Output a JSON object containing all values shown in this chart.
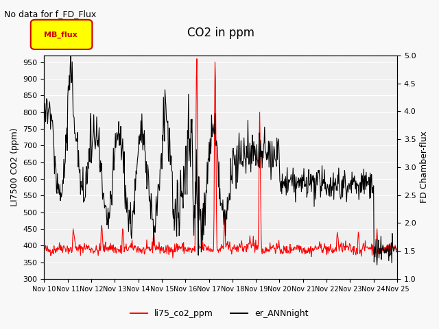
{
  "title": "CO2 in ppm",
  "subtitle": "No data for f_FD_Flux",
  "ylabel_left": "LI7500 CO2 (ppm)",
  "ylabel_right": "FD Chamber-flux",
  "ylim_left": [
    300,
    970
  ],
  "ylim_right": [
    1.0,
    5.0
  ],
  "yticks_left": [
    300,
    350,
    400,
    450,
    500,
    550,
    600,
    650,
    700,
    750,
    800,
    850,
    900,
    950
  ],
  "yticks_right": [
    1.0,
    1.5,
    2.0,
    2.5,
    3.0,
    3.5,
    4.0,
    4.5,
    5.0
  ],
  "xticklabels": [
    "Nov 10",
    "Nov 11",
    "Nov 12",
    "Nov 13",
    "Nov 14",
    "Nov 15",
    "Nov 16",
    "Nov 17",
    "Nov 18",
    "Nov 19",
    "Nov 20",
    "Nov 21",
    "Nov 22",
    "Nov 23",
    "Nov 24",
    "Nov 25"
  ],
  "line1_color": "#ff0000",
  "line2_color": "#000000",
  "line1_label": "li75_co2_ppm",
  "line2_label": "er_ANNnight",
  "legend_box_color": "#ffff00",
  "legend_box_label": "MB_flux",
  "background_color": "#f0f0f0",
  "grid_color": "#ffffff"
}
